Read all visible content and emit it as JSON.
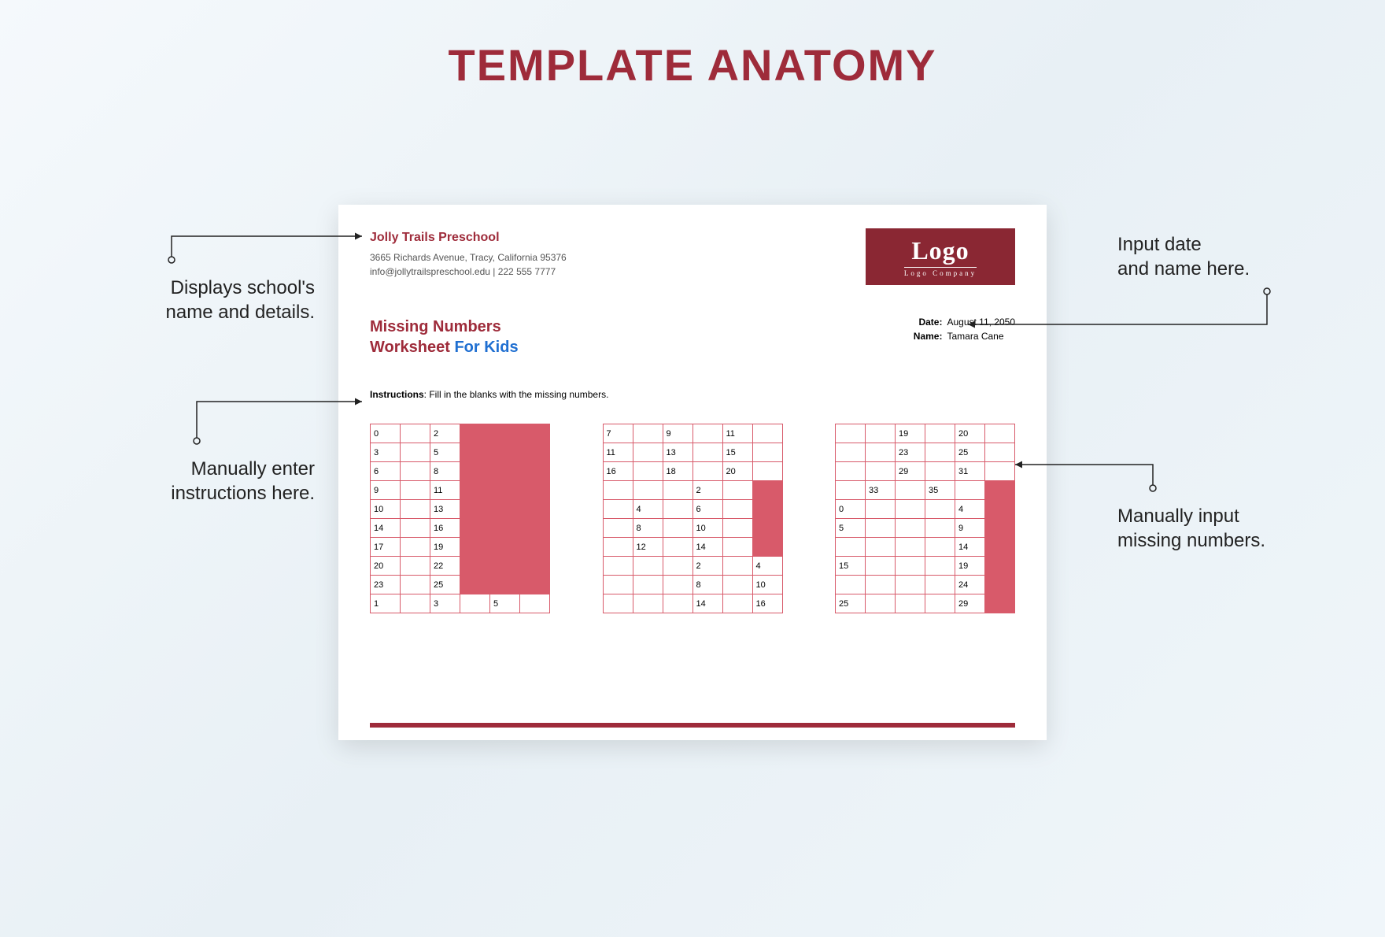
{
  "colors": {
    "maroon": "#9e2b3a",
    "maroon_dark": "#8a2733",
    "blue": "#1f6fd1",
    "accent_fill": "#d85a6a",
    "cell_border": "#d85a6a",
    "text_dark": "#222222",
    "text_muted": "#555555",
    "doc_bg": "#ffffff",
    "page_bg_start": "#f5f9fc",
    "page_bg_end": "#e8f0f5"
  },
  "title": "TEMPLATE ANATOMY",
  "school": {
    "name": "Jolly Trails Preschool",
    "address": "3665 Richards Avenue, Tracy, California 95376",
    "contact": "info@jollytrailspreschool.edu | 222 555 7777"
  },
  "logo": {
    "main": "Logo",
    "sub": "Logo Company"
  },
  "worksheet": {
    "title_line1": "Missing Numbers",
    "title_line2a": "Worksheet ",
    "title_line2b": "For Kids"
  },
  "meta": {
    "date_label": "Date:",
    "date_value": "August 11, 2050",
    "name_label": "Name:",
    "name_value": "Tamara Cane"
  },
  "instructions": {
    "label": "Instructions",
    "text": ": Fill in the blanks with the missing numbers."
  },
  "grids": {
    "cols": 6,
    "rows": 10,
    "filled_flag": "F",
    "table1": [
      [
        "0",
        "",
        "2",
        "F",
        "F",
        "F"
      ],
      [
        "3",
        "",
        "5",
        "F",
        "F",
        "F"
      ],
      [
        "6",
        "",
        "8",
        "F",
        "F",
        "F"
      ],
      [
        "9",
        "",
        "11",
        "F",
        "F",
        "F"
      ],
      [
        "10",
        "",
        "13",
        "F",
        "F",
        "F"
      ],
      [
        "14",
        "",
        "16",
        "F",
        "F",
        "F"
      ],
      [
        "17",
        "",
        "19",
        "F",
        "F",
        "F"
      ],
      [
        "20",
        "",
        "22",
        "F",
        "F",
        "F"
      ],
      [
        "23",
        "",
        "25",
        "F",
        "F",
        "F"
      ],
      [
        "1",
        "",
        "3",
        "",
        "5",
        ""
      ]
    ],
    "table2": [
      [
        "7",
        "",
        "9",
        "",
        "11",
        ""
      ],
      [
        "11",
        "",
        "13",
        "",
        "15",
        ""
      ],
      [
        "16",
        "",
        "18",
        "",
        "20",
        ""
      ],
      [
        "",
        "",
        "",
        "2",
        "",
        "F"
      ],
      [
        "",
        "4",
        "",
        "6",
        "",
        "F"
      ],
      [
        "",
        "8",
        "",
        "10",
        "",
        "F"
      ],
      [
        "",
        "12",
        "",
        "14",
        "",
        "F"
      ],
      [
        "",
        "",
        "",
        "2",
        "",
        "4"
      ],
      [
        "",
        "",
        "",
        "8",
        "",
        "10"
      ],
      [
        "",
        "",
        "",
        "14",
        "",
        "16"
      ]
    ],
    "table3": [
      [
        "",
        "",
        "19",
        "",
        "20",
        ""
      ],
      [
        "",
        "",
        "23",
        "",
        "25",
        ""
      ],
      [
        "",
        "",
        "29",
        "",
        "31",
        ""
      ],
      [
        "",
        "33",
        "",
        "35",
        "",
        "F"
      ],
      [
        "0",
        "",
        "",
        "",
        "4",
        "F"
      ],
      [
        "5",
        "",
        "",
        "",
        "9",
        "F"
      ],
      [
        "",
        "",
        "",
        "",
        "14",
        "F"
      ],
      [
        "15",
        "",
        "",
        "",
        "19",
        "F"
      ],
      [
        "",
        "",
        "",
        "",
        "24",
        "F"
      ],
      [
        "25",
        "",
        "",
        "",
        "29",
        "F"
      ]
    ]
  },
  "callouts": {
    "c1": "Displays school's\nname and details.",
    "c2": "Manually enter\ninstructions here.",
    "c3": "Input date\nand name here.",
    "c4": "Manually input\nmissing numbers."
  }
}
